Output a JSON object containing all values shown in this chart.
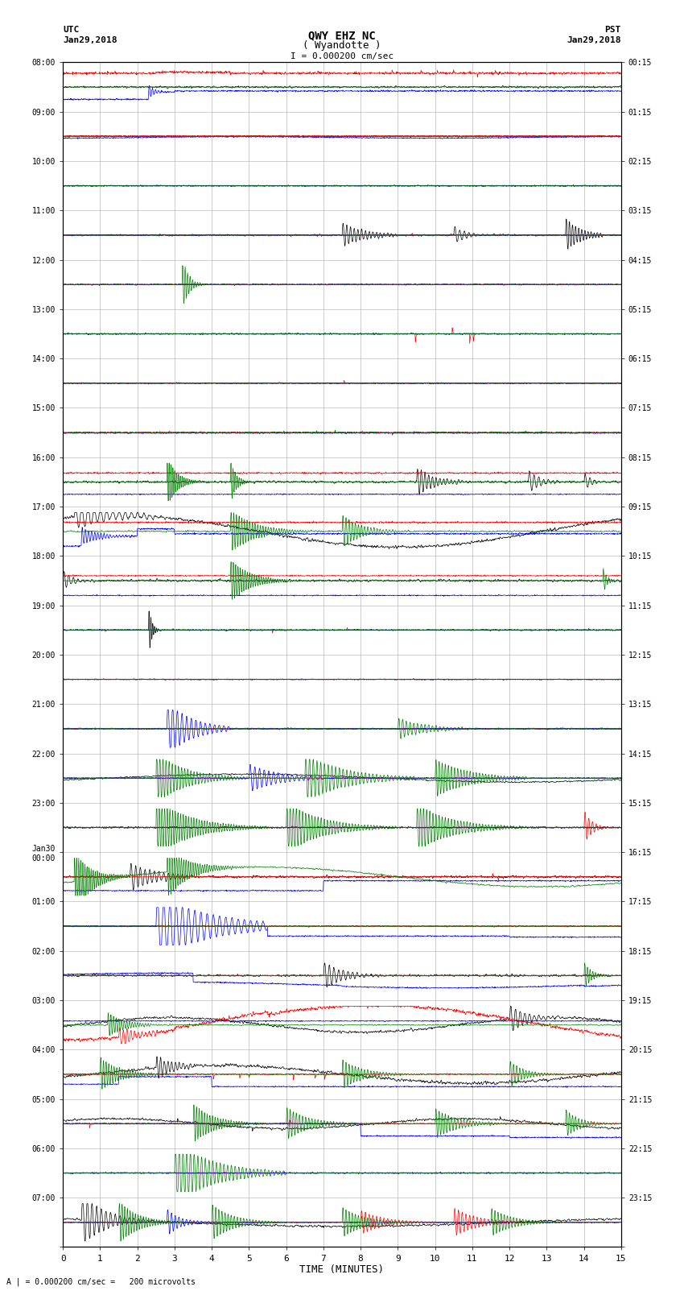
{
  "title_line1": "QWY EHZ NC",
  "title_line2": "( Wyandotte )",
  "scale_label": "I = 0.000200 cm/sec",
  "utc_label": "UTC",
  "utc_date": "Jan29,2018",
  "pst_label": "PST",
  "pst_date": "Jan29,2018",
  "bottom_label": "A | = 0.000200 cm/sec =   200 microvolts",
  "xlabel": "TIME (MINUTES)",
  "left_times_utc": [
    "08:00",
    "09:00",
    "10:00",
    "11:00",
    "12:00",
    "13:00",
    "14:00",
    "15:00",
    "16:00",
    "17:00",
    "18:00",
    "19:00",
    "20:00",
    "21:00",
    "22:00",
    "23:00",
    "Jan30\n00:00",
    "01:00",
    "02:00",
    "03:00",
    "04:00",
    "05:00",
    "06:00",
    "07:00"
  ],
  "right_times_pst": [
    "00:15",
    "01:15",
    "02:15",
    "03:15",
    "04:15",
    "05:15",
    "06:15",
    "07:15",
    "08:15",
    "09:15",
    "10:15",
    "11:15",
    "12:15",
    "13:15",
    "14:15",
    "15:15",
    "16:15",
    "17:15",
    "18:15",
    "19:15",
    "20:15",
    "21:15",
    "22:15",
    "23:15"
  ],
  "n_rows": 24,
  "minutes_per_row": 15,
  "bg_color": "#ffffff",
  "grid_color": "#aaaaaa",
  "trace_colors": [
    "#000000",
    "#ff0000",
    "#0000ff",
    "#008000"
  ],
  "fig_width": 8.5,
  "fig_height": 16.13
}
